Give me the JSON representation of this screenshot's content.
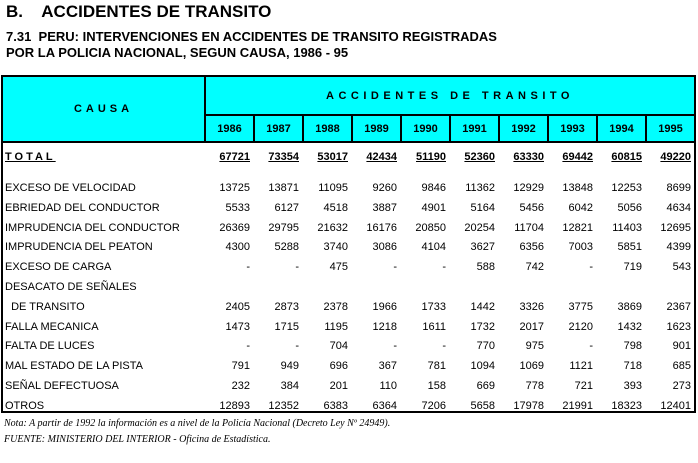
{
  "section_title": "B.    ACCIDENTES DE TRANSITO",
  "subtitle_line1": "7.31  PERU: INTERVENCIONES EN ACCIDENTES DE TRANSITO REGISTRADAS",
  "subtitle_line2": "POR LA POLICIA NACIONAL, SEGUN CAUSA, 1986 - 95",
  "table": {
    "header_color": "#00ffff",
    "causa_header": "CAUSA",
    "group_header": "ACCIDENTES DE TRANSITO",
    "years": [
      "1986",
      "1987",
      "1988",
      "1989",
      "1990",
      "1991",
      "1992",
      "1993",
      "1994",
      "1995"
    ],
    "total": {
      "label": "TOTAL",
      "values": [
        "67721",
        "73354",
        "53017",
        "42434",
        "51190",
        "52360",
        "63330",
        "69442",
        "60815",
        "49220"
      ]
    },
    "rows": [
      {
        "label": "EXCESO DE VELOCIDAD",
        "values": [
          "13725",
          "13871",
          "11095",
          "9260",
          "9846",
          "11362",
          "12929",
          "13848",
          "12253",
          "8699"
        ]
      },
      {
        "label": "EBRIEDAD DEL CONDUCTOR",
        "values": [
          "5533",
          "6127",
          "4518",
          "3887",
          "4901",
          "5164",
          "5456",
          "6042",
          "5056",
          "4634"
        ]
      },
      {
        "label": "IMPRUDENCIA DEL CONDUCTOR",
        "values": [
          "26369",
          "29795",
          "21632",
          "16176",
          "20850",
          "20254",
          "11704",
          "12821",
          "11403",
          "12695"
        ]
      },
      {
        "label": "IMPRUDENCIA DEL PEATON",
        "values": [
          "4300",
          "5288",
          "3740",
          "3086",
          "4104",
          "3627",
          "6356",
          "7003",
          "5851",
          "4399"
        ]
      },
      {
        "label": "EXCESO DE CARGA",
        "values": [
          "-",
          "-",
          "475",
          "-",
          "-",
          "588",
          "742",
          "-",
          "719",
          "543"
        ]
      },
      {
        "label": "DESACATO DE SEÑALES",
        "values": [
          "",
          "",
          "",
          "",
          "",
          "",
          "",
          "",
          "",
          ""
        ]
      },
      {
        "label": "  DE TRANSITO",
        "values": [
          "2405",
          "2873",
          "2378",
          "1966",
          "1733",
          "1442",
          "3326",
          "3775",
          "3869",
          "2367"
        ]
      },
      {
        "label": "FALLA MECANICA",
        "values": [
          "1473",
          "1715",
          "1195",
          "1218",
          "1611",
          "1732",
          "2017",
          "2120",
          "1432",
          "1623"
        ]
      },
      {
        "label": "FALTA DE LUCES",
        "values": [
          "-",
          "-",
          "704",
          "-",
          "-",
          "770",
          "975",
          "-",
          "798",
          "901"
        ]
      },
      {
        "label": "MAL ESTADO DE LA PISTA",
        "values": [
          "791",
          "949",
          "696",
          "367",
          "781",
          "1094",
          "1069",
          "1121",
          "718",
          "685"
        ]
      },
      {
        "label": "SEÑAL DEFECTUOSA",
        "values": [
          "232",
          "384",
          "201",
          "110",
          "158",
          "669",
          "778",
          "721",
          "393",
          "273"
        ]
      },
      {
        "label": "OTROS",
        "values": [
          "12893",
          "12352",
          "6383",
          "6364",
          "7206",
          "5658",
          "17978",
          "21991",
          "18323",
          "12401"
        ]
      }
    ]
  },
  "note": "Nota: A partir de 1992 la información es a nivel de la Policía Nacional (Decreto Ley Nº 24949).",
  "source": "FUENTE: MINISTERIO DEL INTERIOR - Oficina de Estadística."
}
